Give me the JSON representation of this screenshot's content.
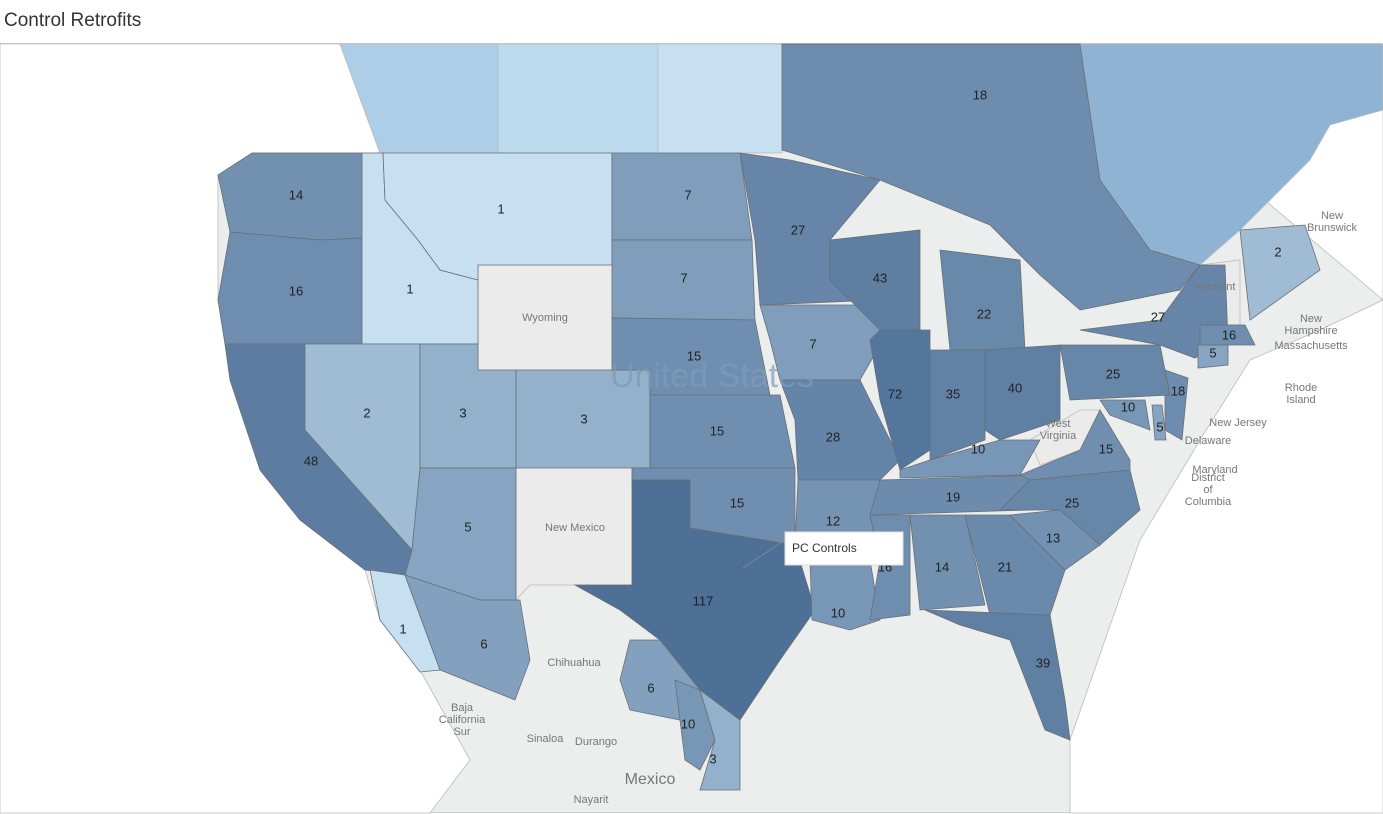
{
  "title": "Control Retrofits",
  "annotation": "PC Controls",
  "country_label": "United States",
  "color_scale": {
    "low": "#c6e0f1",
    "high": "#4e6f96"
  },
  "regions": [
    {
      "value": 14
    },
    {
      "value": 16
    },
    {
      "value": 48
    },
    {
      "value": 1
    },
    {
      "value": 2
    },
    {
      "value": 1
    },
    {
      "value": 3
    },
    {
      "value": 3
    },
    {
      "value": 5
    },
    {
      "value": 7
    },
    {
      "value": 7
    },
    {
      "value": 15
    },
    {
      "value": 15
    },
    {
      "value": 15
    },
    {
      "value": 117
    },
    {
      "value": 27
    },
    {
      "value": 7
    },
    {
      "value": 28
    },
    {
      "value": 12
    },
    {
      "value": 10
    },
    {
      "value": 43
    },
    {
      "value": 72
    },
    {
      "value": 35
    },
    {
      "value": 22
    },
    {
      "value": 40
    },
    {
      "value": 10
    },
    {
      "value": 19
    },
    {
      "value": 16
    },
    {
      "value": 14
    },
    {
      "value": 21
    },
    {
      "value": 39
    },
    {
      "value": 13
    },
    {
      "value": 25
    },
    {
      "value": 15
    },
    {
      "value": 10
    },
    {
      "value": 5
    },
    {
      "value": 18
    },
    {
      "value": 25
    },
    {
      "value": 27
    },
    {
      "value": 5
    },
    {
      "value": 16
    },
    {
      "value": 2
    },
    {
      "value": 18
    },
    {
      "value": 1
    },
    {
      "value": 6
    },
    {
      "value": 6
    },
    {
      "value": 10
    },
    {
      "value": 3
    }
  ],
  "basemap_labels": [
    "Wyoming",
    "New Mexico",
    "West Virginia",
    "Vermont",
    "New Brunswick",
    "New Hampshire",
    "Massachusetts",
    "Rhode Island",
    "New Jersey",
    "Delaware",
    "Maryland",
    "District of Columbia",
    "Chihuahua",
    "Baja California Sur",
    "Sinaloa",
    "Durango",
    "Nayarit",
    "Mexico"
  ]
}
